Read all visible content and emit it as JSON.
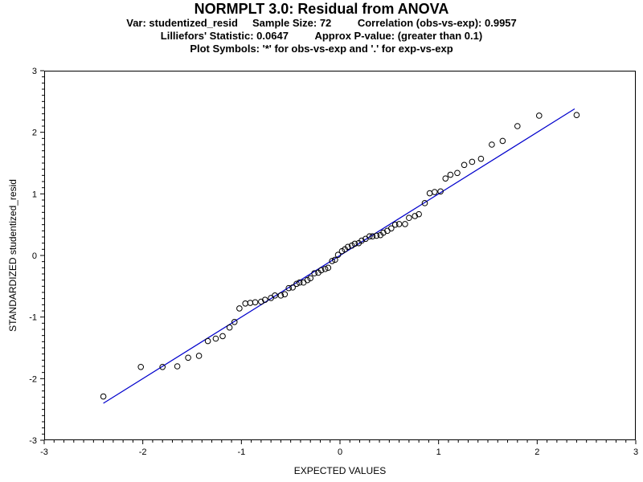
{
  "header": {
    "title": "NORMPLT 3.0:  Residual from ANOVA",
    "line2": [
      "Var: studentized_resid",
      "Sample Size: 72",
      "Correlation (obs-vs-exp): 0.9957"
    ],
    "line3": [
      "Lilliefors' Statistic:  0.0647",
      "Approx P-value: (greater than 0.1)"
    ],
    "line4": "Plot Symbols: '*' for obs-vs-exp and '.' for exp-vs-exp"
  },
  "colors": {
    "reference_line": "#0000cc",
    "points": "#000000",
    "frame": "#000000"
  },
  "chart_data": {
    "type": "scatter",
    "xlabel": "EXPECTED VALUES",
    "ylabel": "STANDARDIZED studentized_resid",
    "xlim": [
      -3,
      3
    ],
    "ylim": [
      -3,
      3
    ],
    "xticks": [
      "-3",
      "-2",
      "-1",
      "0",
      "1",
      "2",
      "3"
    ],
    "yticks": [
      "-3",
      "-2",
      "-1",
      "0",
      "1",
      "2",
      "3"
    ],
    "grid": false,
    "reference_line": {
      "x": [
        -2.4,
        2.38
      ],
      "y": [
        -2.4,
        2.38
      ]
    },
    "points": [
      {
        "x": -2.4,
        "y": -2.29
      },
      {
        "x": -2.02,
        "y": -1.81
      },
      {
        "x": -1.8,
        "y": -1.81
      },
      {
        "x": -1.65,
        "y": -1.8
      },
      {
        "x": -1.54,
        "y": -1.66
      },
      {
        "x": -1.43,
        "y": -1.63
      },
      {
        "x": -1.34,
        "y": -1.39
      },
      {
        "x": -1.26,
        "y": -1.35
      },
      {
        "x": -1.19,
        "y": -1.31
      },
      {
        "x": -1.12,
        "y": -1.17
      },
      {
        "x": -1.07,
        "y": -1.08
      },
      {
        "x": -1.02,
        "y": -0.86
      },
      {
        "x": -0.96,
        "y": -0.78
      },
      {
        "x": -0.91,
        "y": -0.77
      },
      {
        "x": -0.86,
        "y": -0.76
      },
      {
        "x": -0.8,
        "y": -0.75
      },
      {
        "x": -0.76,
        "y": -0.72
      },
      {
        "x": -0.7,
        "y": -0.69
      },
      {
        "x": -0.66,
        "y": -0.65
      },
      {
        "x": -0.6,
        "y": -0.65
      },
      {
        "x": -0.56,
        "y": -0.63
      },
      {
        "x": -0.52,
        "y": -0.53
      },
      {
        "x": -0.48,
        "y": -0.52
      },
      {
        "x": -0.44,
        "y": -0.46
      },
      {
        "x": -0.41,
        "y": -0.44
      },
      {
        "x": -0.37,
        "y": -0.44
      },
      {
        "x": -0.33,
        "y": -0.4
      },
      {
        "x": -0.3,
        "y": -0.37
      },
      {
        "x": -0.26,
        "y": -0.29
      },
      {
        "x": -0.22,
        "y": -0.28
      },
      {
        "x": -0.19,
        "y": -0.24
      },
      {
        "x": -0.15,
        "y": -0.22
      },
      {
        "x": -0.12,
        "y": -0.2
      },
      {
        "x": -0.08,
        "y": -0.09
      },
      {
        "x": -0.05,
        "y": -0.07
      },
      {
        "x": -0.02,
        "y": 0.01
      },
      {
        "x": 0.02,
        "y": 0.07
      },
      {
        "x": 0.05,
        "y": 0.1
      },
      {
        "x": 0.08,
        "y": 0.14
      },
      {
        "x": 0.12,
        "y": 0.16
      },
      {
        "x": 0.15,
        "y": 0.19
      },
      {
        "x": 0.19,
        "y": 0.2
      },
      {
        "x": 0.22,
        "y": 0.24
      },
      {
        "x": 0.26,
        "y": 0.27
      },
      {
        "x": 0.3,
        "y": 0.31
      },
      {
        "x": 0.33,
        "y": 0.31
      },
      {
        "x": 0.37,
        "y": 0.32
      },
      {
        "x": 0.41,
        "y": 0.33
      },
      {
        "x": 0.44,
        "y": 0.37
      },
      {
        "x": 0.48,
        "y": 0.4
      },
      {
        "x": 0.52,
        "y": 0.44
      },
      {
        "x": 0.56,
        "y": 0.5
      },
      {
        "x": 0.6,
        "y": 0.51
      },
      {
        "x": 0.66,
        "y": 0.51
      },
      {
        "x": 0.7,
        "y": 0.61
      },
      {
        "x": 0.76,
        "y": 0.64
      },
      {
        "x": 0.8,
        "y": 0.67
      },
      {
        "x": 0.86,
        "y": 0.85
      },
      {
        "x": 0.91,
        "y": 1.01
      },
      {
        "x": 0.96,
        "y": 1.03
      },
      {
        "x": 1.02,
        "y": 1.04
      },
      {
        "x": 1.07,
        "y": 1.25
      },
      {
        "x": 1.12,
        "y": 1.31
      },
      {
        "x": 1.19,
        "y": 1.34
      },
      {
        "x": 1.26,
        "y": 1.47
      },
      {
        "x": 1.34,
        "y": 1.52
      },
      {
        "x": 1.43,
        "y": 1.57
      },
      {
        "x": 1.54,
        "y": 1.8
      },
      {
        "x": 1.65,
        "y": 1.86
      },
      {
        "x": 1.8,
        "y": 2.1
      },
      {
        "x": 2.02,
        "y": 2.27
      },
      {
        "x": 2.4,
        "y": 2.28
      }
    ]
  }
}
